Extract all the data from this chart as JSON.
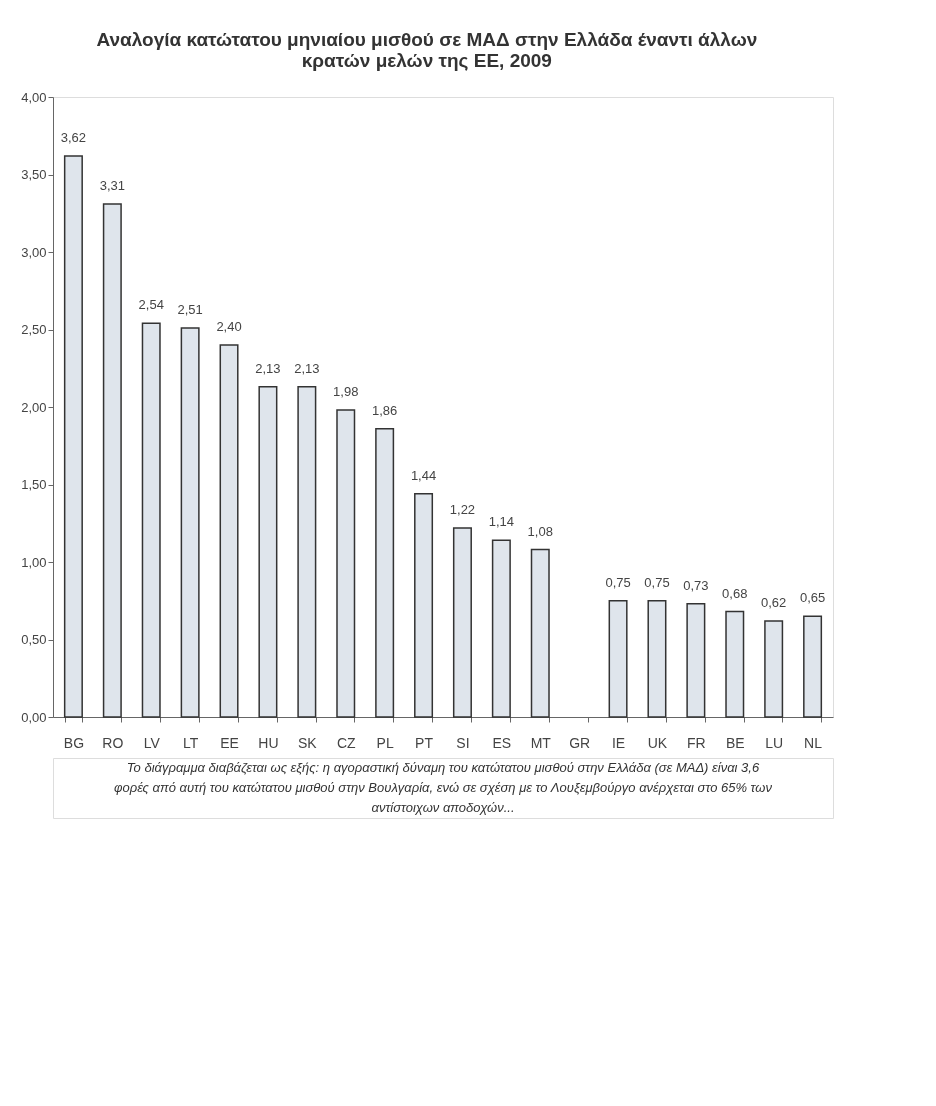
{
  "chart_data": {
    "type": "bar",
    "title": "Αναλογία κατώτατου μηνιαίου μισθού σε ΜΑΔ στην Ελλάδα έναντι άλλων κρατών μελών της ΕΕ, 2009",
    "categories": [
      "BG",
      "RO",
      "LV",
      "LT",
      "EE",
      "HU",
      "SK",
      "CZ",
      "PL",
      "PT",
      "SI",
      "ES",
      "MT",
      "GR",
      "IE",
      "UK",
      "FR",
      "BE",
      "LU",
      "NL"
    ],
    "values": [
      3.62,
      3.31,
      2.54,
      2.51,
      2.4,
      2.13,
      2.13,
      1.98,
      1.86,
      1.44,
      1.22,
      1.14,
      1.08,
      null,
      0.75,
      0.75,
      0.73,
      0.68,
      0.62,
      0.65
    ],
    "value_labels": [
      "3,62",
      "3,31",
      "2,54",
      "2,51",
      "2,40",
      "2,13",
      "2,13",
      "1,98",
      "1,86",
      "1,44",
      "1,22",
      "1,14",
      "1,08",
      null,
      "0,75",
      "0,75",
      "0,73",
      "0,68",
      "0,62",
      "0,65"
    ],
    "color": "#dfe5ec",
    "ylim": [
      0,
      4
    ],
    "yticks": [
      {
        "value": 0,
        "label": "0,00"
      },
      {
        "value": 0.5,
        "label": "0,50"
      },
      {
        "value": 1,
        "label": "1,00"
      },
      {
        "value": 1.5,
        "label": "1,50"
      },
      {
        "value": 2,
        "label": "2,00"
      },
      {
        "value": 2.5,
        "label": "2,50"
      },
      {
        "value": 3,
        "label": "3,00"
      },
      {
        "value": 3.5,
        "label": "3,50"
      },
      {
        "value": 4,
        "label": "4,00"
      }
    ],
    "grid": false,
    "annotations": [
      "Το διάγραμμα διαβάζεται ως εξής: η αγοραστική δύναμη του κατώτατου μισθού στην Ελλάδα (σε ΜΑΔ) είναι 3,6 φορές από αυτή του κατώτατου μισθού στην Βουλγαρία, ενώ σε σχέση με το Λουξεμβούργο ανέρχεται στο 65% των αντίστοιχων αποδοχών..."
    ]
  }
}
